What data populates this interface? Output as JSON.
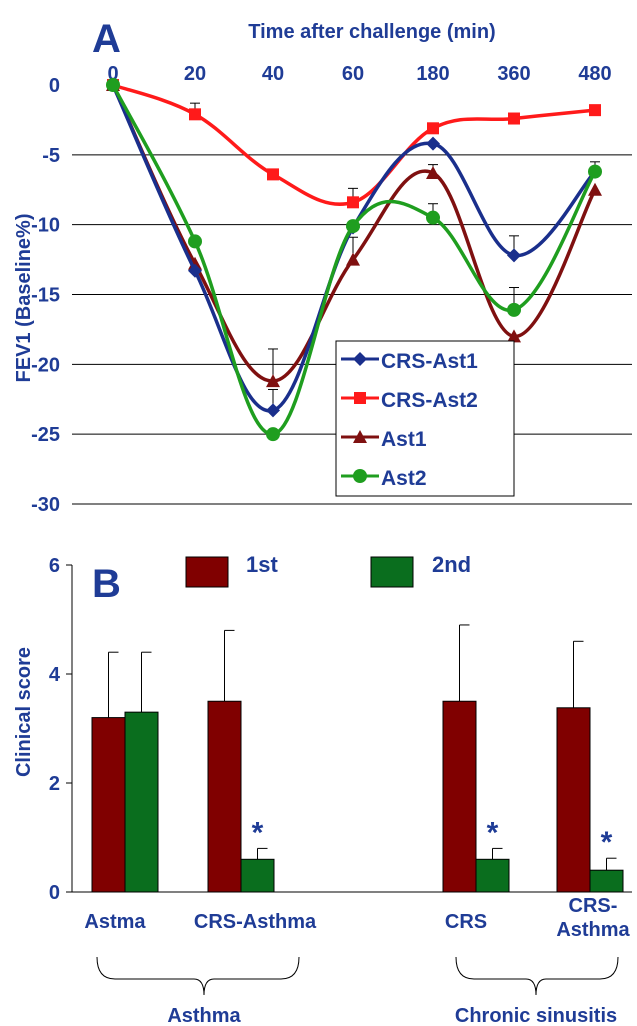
{
  "colors": {
    "text": "#1f3c96",
    "grid": "#000000",
    "crs_ast1": "#1a2f8c",
    "crs_ast2": "#ff1a1a",
    "ast1": "#7f1010",
    "ast2": "#1f9e1f",
    "bar_1st": "#800000",
    "bar_2nd": "#0a6e1e"
  },
  "chart_data": [
    {
      "panel": "A",
      "type": "line",
      "xlabel": "Time after challenge (min)",
      "ylabel": "FEV1 (Baseline%)",
      "x_ticks": [
        "0",
        "20",
        "40",
        "60",
        "180",
        "360",
        "480"
      ],
      "y_ticks": [
        "0",
        "-5",
        "-10",
        "-15",
        "-20",
        "-25",
        "-30"
      ],
      "ylim": [
        -30,
        0
      ],
      "grid": true,
      "legend": "lower-right",
      "series": [
        {
          "name": "CRS-Ast1",
          "marker": "diamond",
          "values": [
            0,
            -13.3,
            -23.3,
            -10.2,
            -4.2,
            -12.2,
            -6.2
          ],
          "err": [
            0,
            0,
            1.5,
            0,
            0,
            1.4,
            0.7
          ]
        },
        {
          "name": "CRS-Ast2",
          "marker": "square",
          "values": [
            0,
            -2.1,
            -6.4,
            -8.4,
            -3.1,
            -2.4,
            -1.8
          ],
          "err": [
            0,
            0.8,
            0,
            1.0,
            0,
            0,
            0
          ]
        },
        {
          "name": "Ast1",
          "marker": "triangle",
          "values": [
            0,
            -12.8,
            -21.2,
            -12.5,
            -6.3,
            -18.0,
            -7.5
          ],
          "err": [
            0,
            0,
            2.3,
            1.6,
            0.6,
            0,
            0
          ]
        },
        {
          "name": "Ast2",
          "marker": "circle",
          "values": [
            0,
            -11.2,
            -25.0,
            -10.1,
            -9.5,
            -16.1,
            -6.2
          ],
          "err": [
            0,
            0,
            0,
            0,
            1.0,
            1.6,
            0
          ]
        }
      ]
    },
    {
      "panel": "B",
      "type": "bar",
      "ylabel": "Clinical score",
      "y_ticks": [
        "0",
        "2",
        "4",
        "6"
      ],
      "ylim": [
        0,
        6
      ],
      "legend": "top",
      "groups": [
        "Asthma",
        "Chronic sinusitis"
      ],
      "categories": [
        "Astma",
        "CRS-Asthma",
        "CRS",
        "CRS-Asthma"
      ],
      "series": [
        {
          "name": "1st",
          "values": [
            3.2,
            3.5,
            3.5,
            3.38
          ],
          "err": [
            1.2,
            1.3,
            1.4,
            1.22
          ]
        },
        {
          "name": "2nd",
          "values": [
            3.3,
            0.6,
            0.6,
            0.4
          ],
          "err": [
            1.1,
            0.2,
            0.2,
            0.22
          ]
        }
      ],
      "significance": [
        "",
        "*",
        "*",
        "*"
      ]
    }
  ]
}
